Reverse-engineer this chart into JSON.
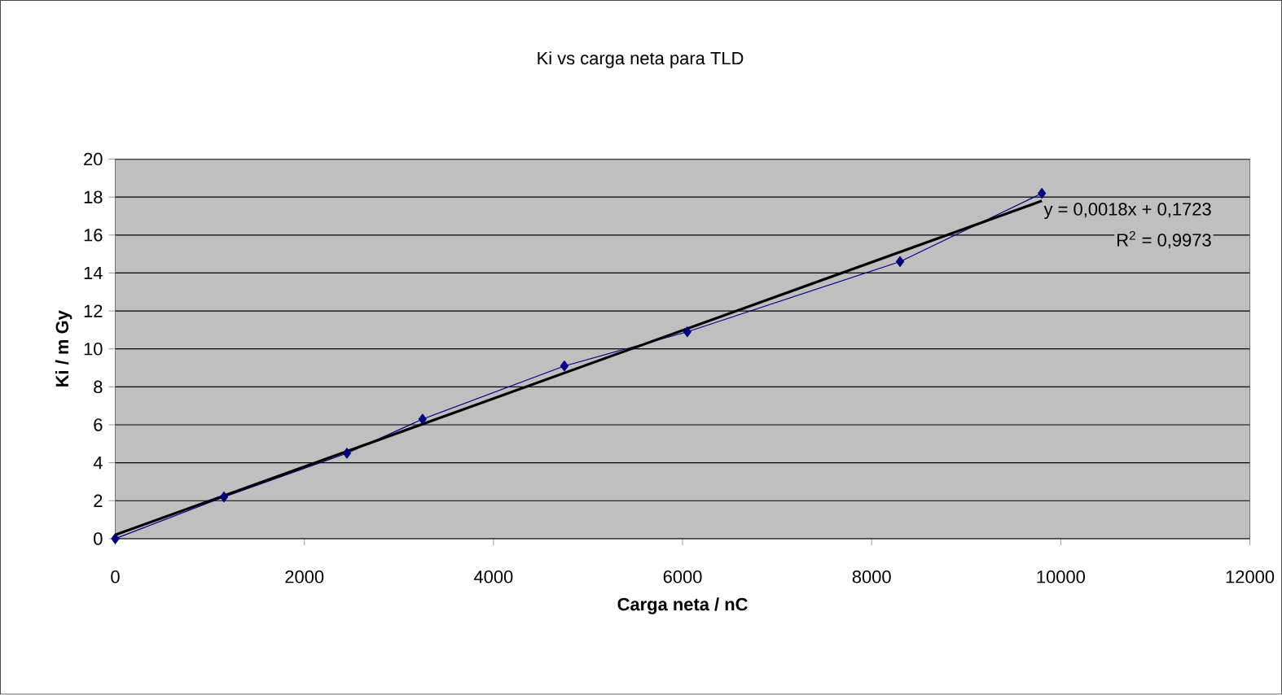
{
  "chart_data": {
    "type": "line",
    "title": "Ki vs carga neta para TLD",
    "xlabel": "Carga neta / nC",
    "ylabel": "Ki / m Gy",
    "xlim": [
      0,
      12000
    ],
    "xticks": [
      0,
      2000,
      4000,
      6000,
      8000,
      10000,
      12000
    ],
    "ylim": [
      0,
      20
    ],
    "yticks": [
      0,
      2,
      4,
      6,
      8,
      10,
      12,
      14,
      16,
      18,
      20
    ],
    "grid": "y",
    "series": [
      {
        "color": "#000080",
        "marker": "diamond",
        "x": [
          0,
          1150,
          2450,
          3250,
          4750,
          6050,
          8300,
          9800
        ],
        "values": [
          0,
          2.2,
          4.5,
          6.3,
          9.1,
          10.9,
          14.6,
          18.2
        ]
      },
      {
        "color": "#000000",
        "marker": "none",
        "x": [
          0,
          9800
        ],
        "values": [
          0.2,
          17.8
        ]
      }
    ],
    "annotations": [
      {
        "text": "y = 0,0018x + 0,1723",
        "x": 9800,
        "y": 17.8
      },
      "R$^{2}$ = 0,9973"
    ]
  }
}
